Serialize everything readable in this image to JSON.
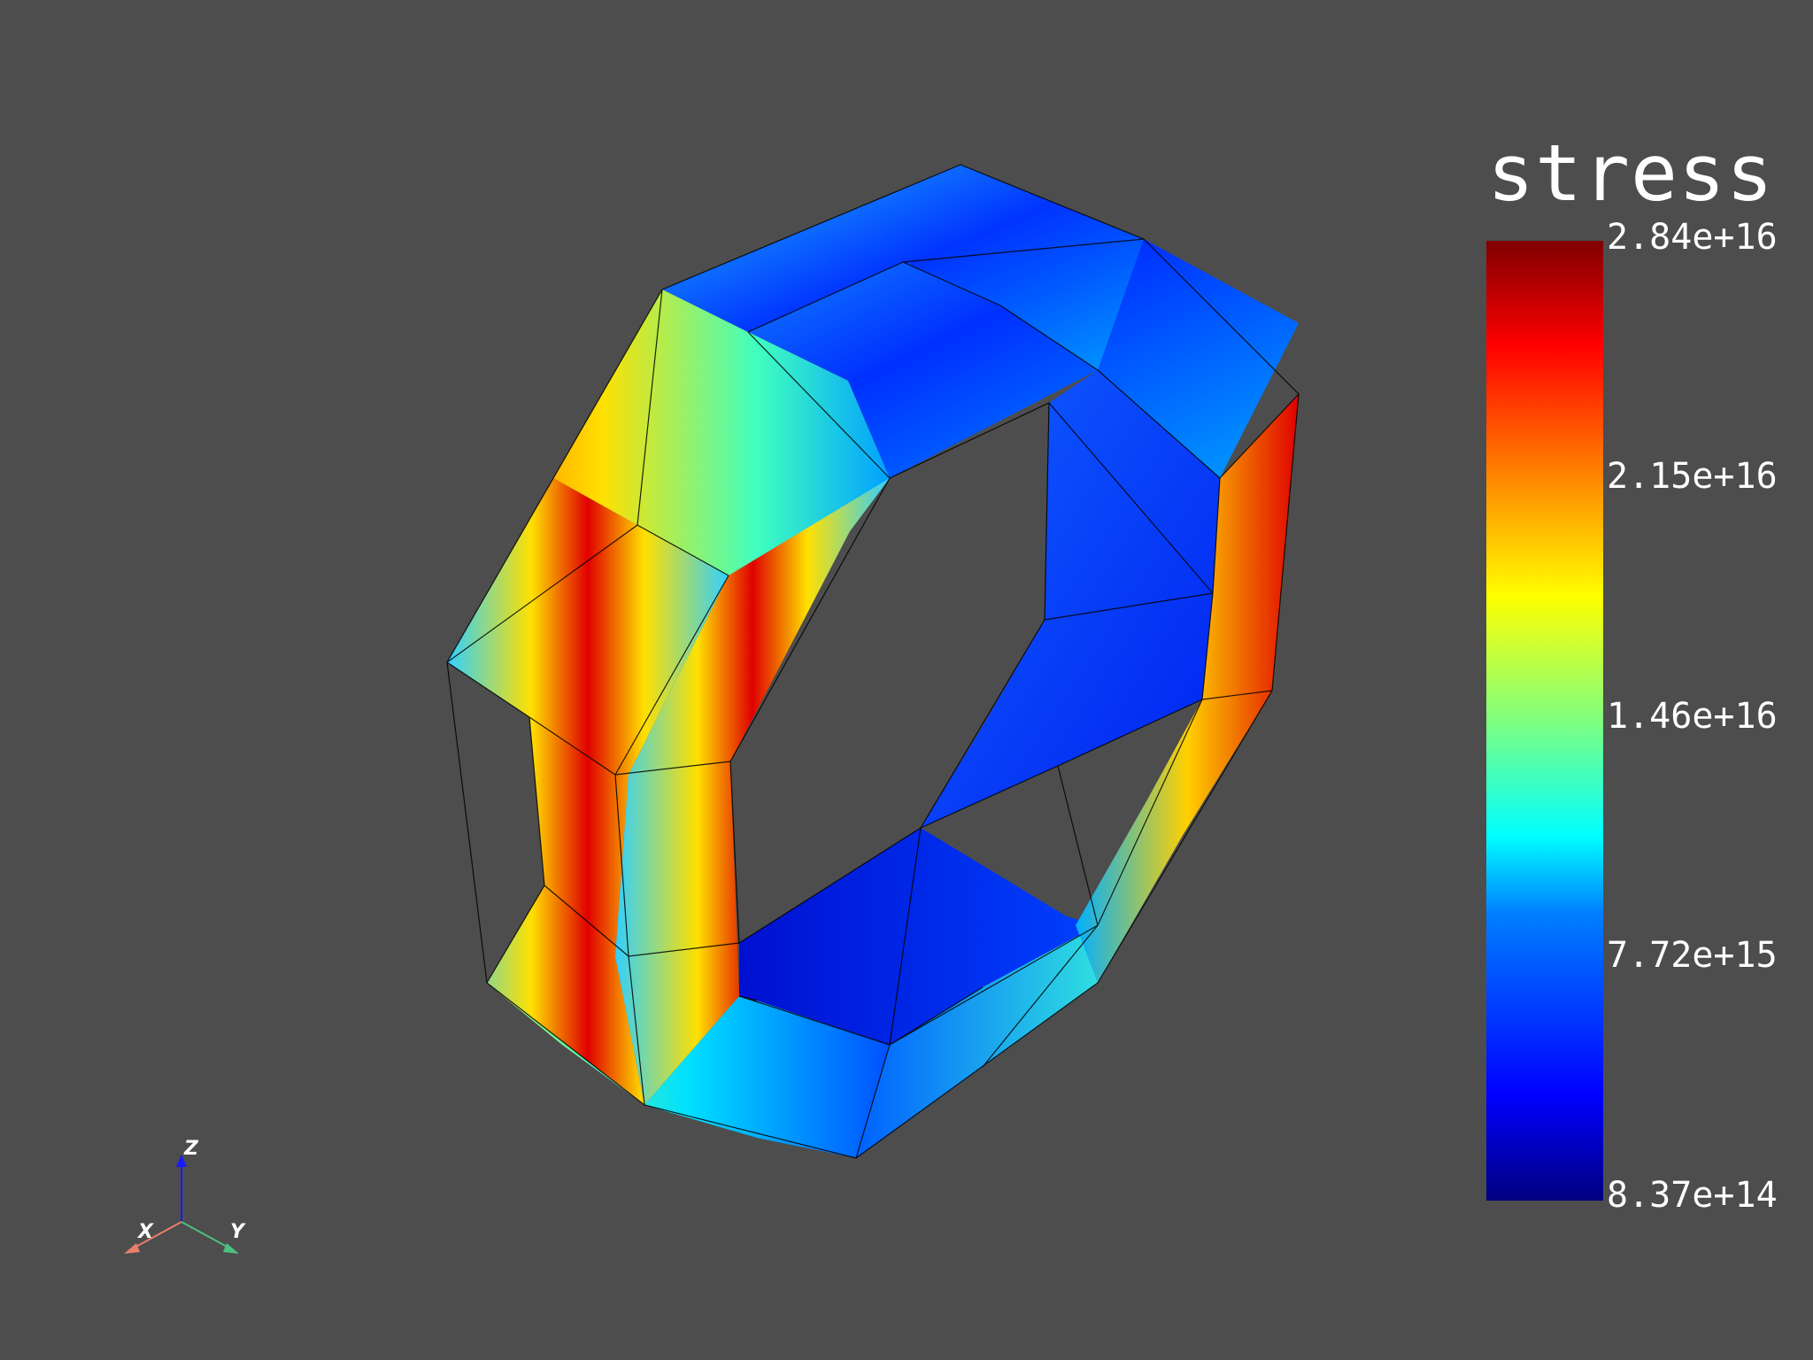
{
  "scalar_bar": {
    "title": "stress",
    "ticks": [
      "2.84e+16",
      "2.15e+16",
      "1.46e+16",
      "7.72e+15",
      "8.37e+14"
    ],
    "range": [
      837000000000000.0,
      2.84e+16
    ],
    "colormap": [
      "#00007f",
      "#0000ff",
      "#0080ff",
      "#00ffff",
      "#80ff80",
      "#ffff00",
      "#ff8000",
      "#ff0000",
      "#7f0000"
    ]
  },
  "orientation_axes": {
    "x_label": "X",
    "y_label": "Y",
    "z_label": "Z",
    "x_color": "#e8806b",
    "y_color": "#4fbf7f",
    "z_color": "#1a1aff"
  },
  "background": "#4d4d4d"
}
